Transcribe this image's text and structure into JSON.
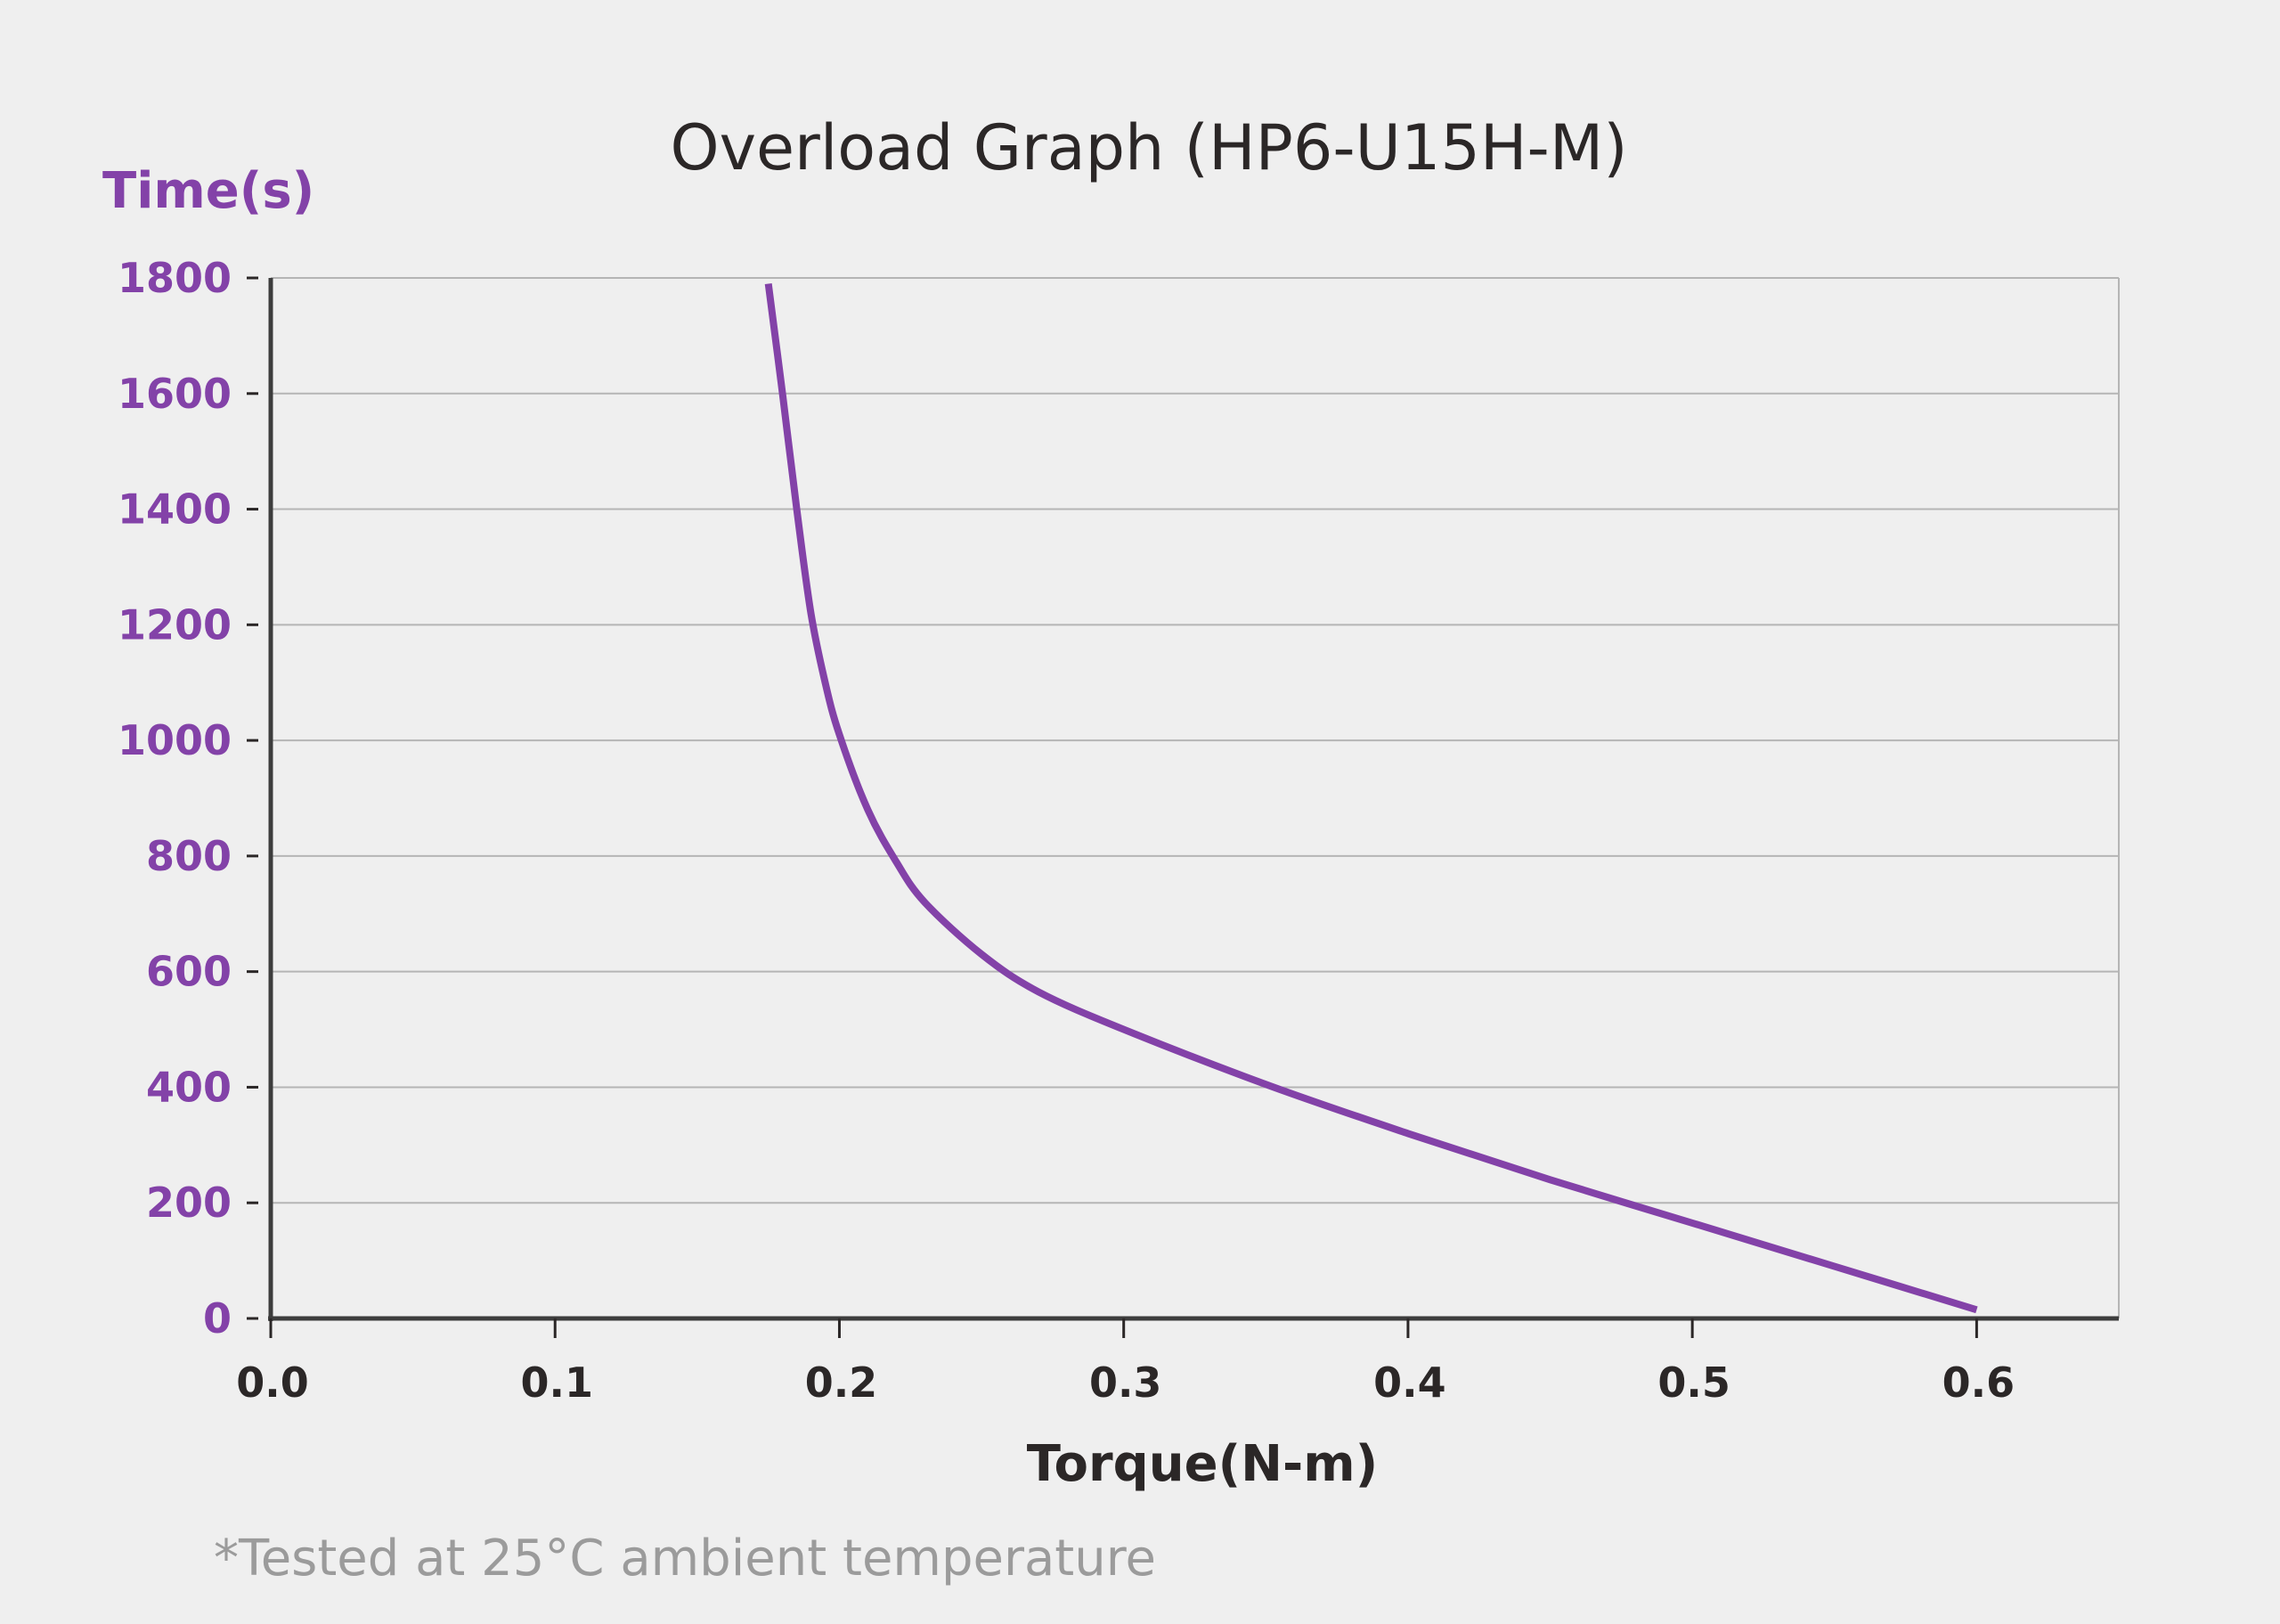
{
  "chart_data": {
    "type": "line",
    "title": "Overload Graph  (HP6-U15H-M)",
    "xlabel": "Torque(N-m)",
    "ylabel": "Time(s)",
    "xlim": [
      0,
      0.65
    ],
    "ylim": [
      0,
      1800
    ],
    "x_ticks": [
      "0.0",
      "0.1",
      "0.2",
      "0.3",
      "0.4",
      "0.5",
      "0.6"
    ],
    "y_ticks": [
      "0",
      "200",
      "400",
      "600",
      "800",
      "1000",
      "1200",
      "1400",
      "1600",
      "1800"
    ],
    "grid": true,
    "series": [
      {
        "color": "#8342a8",
        "x": [
          0.175,
          0.18,
          0.185,
          0.19,
          0.195,
          0.2,
          0.21,
          0.22,
          0.23,
          0.25,
          0.27,
          0.3,
          0.35,
          0.4,
          0.45,
          0.5,
          0.55,
          0.6
        ],
        "y": [
          1790,
          1600,
          1400,
          1220,
          1100,
          1010,
          880,
          790,
          720,
          630,
          565,
          500,
          405,
          320,
          240,
          165,
          90,
          15
        ]
      }
    ],
    "footnote": "*Tested at 25°C ambient temperature"
  },
  "colors": {
    "accent": "#8342a8",
    "text": "#2b2727",
    "grid": "#b5b5b5",
    "background": "#efefef"
  }
}
